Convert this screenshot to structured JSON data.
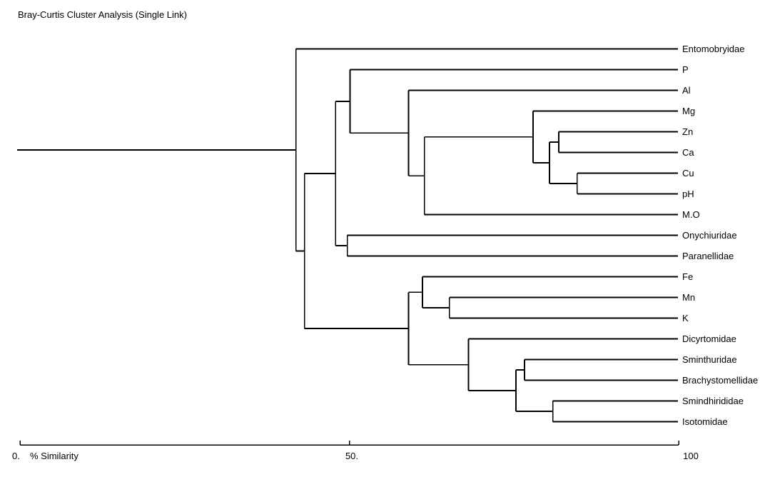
{
  "chart_data": {
    "type": "dendrogram",
    "title": "Bray-Curtis Cluster Analysis (Single Link)",
    "orientation": "horizontal-right",
    "grid": false,
    "legend": false,
    "axis": {
      "label": "% Similarity",
      "min": 0,
      "max": 100,
      "ticks": [
        {
          "value": 0,
          "label": "0."
        },
        {
          "value": 50,
          "label": "50."
        },
        {
          "value": 100,
          "label": "100"
        }
      ]
    },
    "leaves": [
      "Entomobryidae",
      "P",
      "Al",
      "Mg",
      "Zn",
      "Ca",
      "Cu",
      "pH",
      "M.O",
      "Onychiuridae",
      "Paranellidae",
      "Fe",
      "Mn",
      "K",
      "Dicyrtomidae",
      "Sminthuridae",
      "Brachystomellidae",
      "Smindhirididae",
      "Isotomidae"
    ],
    "tree": {
      "sim": 41.9,
      "children": [
        {
          "leaf": "Entomobryidae"
        },
        {
          "sim": 43.2,
          "children": [
            {
              "sim": 47.9,
              "children": [
                {
                  "sim": 50.1,
                  "children": [
                    {
                      "leaf": "P"
                    },
                    {
                      "sim": 59.0,
                      "children": [
                        {
                          "leaf": "Al"
                        },
                        {
                          "sim": 61.4,
                          "children": [
                            {
                              "sim": 77.9,
                              "children": [
                                {
                                  "leaf": "Mg"
                                },
                                {
                                  "sim": 80.4,
                                  "children": [
                                    {
                                      "sim": 81.8,
                                      "children": [
                                        {
                                          "leaf": "Zn"
                                        },
                                        {
                                          "leaf": "Ca"
                                        }
                                      ]
                                    },
                                    {
                                      "sim": 84.6,
                                      "children": [
                                        {
                                          "leaf": "Cu"
                                        },
                                        {
                                          "leaf": "pH"
                                        }
                                      ]
                                    }
                                  ]
                                }
                              ]
                            },
                            {
                              "leaf": "M.O"
                            }
                          ]
                        }
                      ]
                    }
                  ]
                },
                {
                  "sim": 49.7,
                  "children": [
                    {
                      "leaf": "Onychiuridae"
                    },
                    {
                      "leaf": "Paranellidae"
                    }
                  ]
                }
              ]
            },
            {
              "sim": 59.0,
              "children": [
                {
                  "sim": 61.1,
                  "children": [
                    {
                      "leaf": "Fe"
                    },
                    {
                      "sim": 65.2,
                      "children": [
                        {
                          "leaf": "Mn"
                        },
                        {
                          "leaf": "K"
                        }
                      ]
                    }
                  ]
                },
                {
                  "sim": 68.1,
                  "children": [
                    {
                      "leaf": "Dicyrtomidae"
                    },
                    {
                      "sim": 75.3,
                      "children": [
                        {
                          "sim": 76.6,
                          "children": [
                            {
                              "leaf": "Sminthuridae"
                            },
                            {
                              "leaf": "Brachystomellidae"
                            }
                          ]
                        },
                        {
                          "sim": 80.9,
                          "children": [
                            {
                              "leaf": "Smindhirididae"
                            },
                            {
                              "leaf": "Isotomidae"
                            }
                          ]
                        }
                      ]
                    }
                  ]
                }
              ]
            }
          ]
        }
      ]
    }
  },
  "colors": {
    "line": "#000000",
    "text": "#000000",
    "background": "#ffffff"
  }
}
